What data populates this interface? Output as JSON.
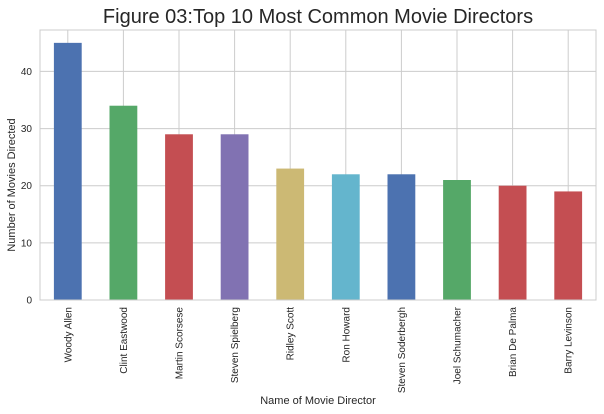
{
  "chart_data": {
    "type": "bar",
    "title": "Figure 03:Top 10 Most Common Movie Directors",
    "xlabel": "Name of Movie Director",
    "ylabel": "Number of Movies Directed",
    "categories": [
      "Woody Allen",
      "Clint Eastwood",
      "Martin Scorsese",
      "Steven Spielberg",
      "Ridley Scott",
      "Ron Howard",
      "Steven Soderbergh",
      "Joel Schumacher",
      "Brian De Palma",
      "Barry Levinson"
    ],
    "values": [
      45,
      34,
      29,
      29,
      23,
      22,
      22,
      21,
      20,
      19
    ],
    "colors": [
      "#4c72b0",
      "#55a868",
      "#c44e52",
      "#8172b2",
      "#ccb974",
      "#64b5cd",
      "#4c72b0",
      "#55a868",
      "#c44e52",
      "#c44e52"
    ],
    "ylim": [
      0,
      47.25
    ],
    "yticks": [
      0,
      10,
      20,
      30,
      40
    ],
    "grid": true,
    "legend": "none"
  }
}
